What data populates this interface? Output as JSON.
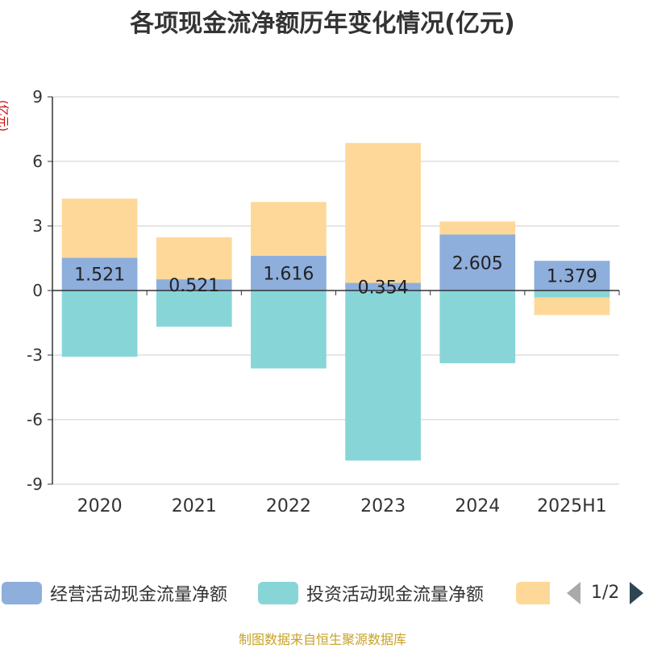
{
  "chart_data": {
    "type": "bar",
    "stacked": true,
    "title": "各项现金流净额历年变化情况(亿元)",
    "y_unit": "(亿元)",
    "categories": [
      "2020",
      "2021",
      "2022",
      "2023",
      "2024",
      "2025H1"
    ],
    "ylim": [
      -9,
      9
    ],
    "yticks": [
      9,
      6,
      3,
      0,
      -3,
      -6,
      -9
    ],
    "grid": true,
    "legend_position": "bottom",
    "series": [
      {
        "name": "经营活动现金流量净额",
        "color": "#8eaedc",
        "values": [
          1.521,
          0.521,
          1.616,
          0.354,
          2.605,
          1.379
        ],
        "labels": [
          "1.521",
          "0.521",
          "1.616",
          "0.354",
          "2.605",
          "1.379"
        ]
      },
      {
        "name": "投资活动现金流量净额",
        "color": "#88d5d8",
        "values": [
          -3.08,
          -1.68,
          -3.62,
          -7.9,
          -3.38,
          -0.32
        ]
      },
      {
        "name": "",
        "color": "#fed899",
        "values": [
          2.75,
          1.95,
          2.5,
          6.5,
          0.6,
          -0.82
        ]
      }
    ]
  },
  "legend": {
    "page_indicator": "1/2"
  },
  "source_note": "制图数据来自恒生聚源数据库"
}
